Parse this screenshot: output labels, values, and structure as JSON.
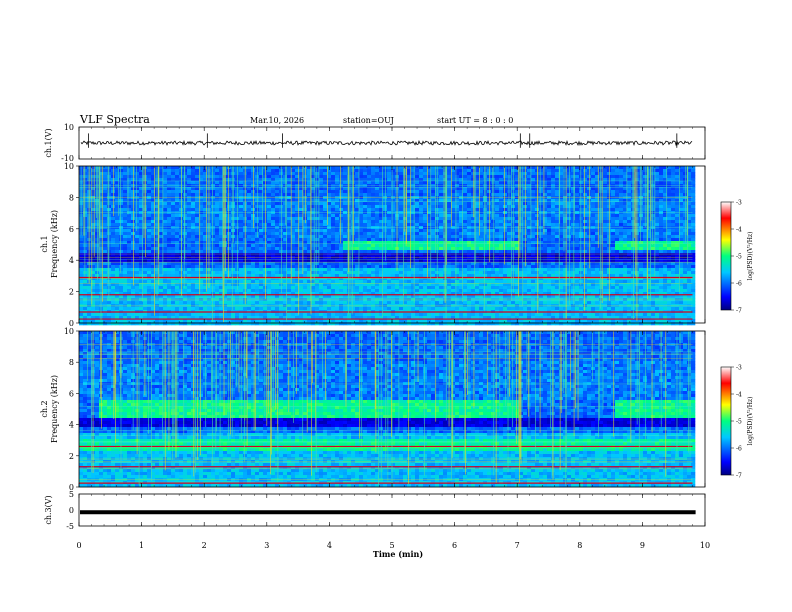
{
  "header": {
    "title": "VLF Spectra",
    "date": "Mar.10, 2026",
    "station": "station=OUJ",
    "start_ut": "start  UT =   8 : 0  : 0"
  },
  "chart_data": [
    {
      "type": "line",
      "id": "ch1_waveform",
      "ylabel": "ch.1(V)",
      "ylim": [
        -10,
        10
      ],
      "ytick_labels": [
        "10",
        "-10"
      ],
      "xlim": [
        0,
        10
      ],
      "mean_value": 0,
      "noise_amplitude": 1.2,
      "spike_times": [
        0.15,
        2.05,
        3.25,
        7.05,
        7.2,
        9.55
      ],
      "color": "#000000"
    },
    {
      "type": "heatmap",
      "id": "ch1_spectrogram",
      "ylabel": "ch.1\nFrequency (kHz)",
      "ylabel_lines": [
        "ch.1",
        "Frequency (kHz)"
      ],
      "ylim": [
        0,
        10
      ],
      "ytick_labels": [
        "0",
        "2",
        "4",
        "6",
        "8",
        "10"
      ],
      "xlim": [
        0,
        9.8
      ],
      "colorbar": {
        "label": "log(PSD)(V²/Hz)",
        "range": [
          -7,
          -3
        ],
        "tick_labels": [
          "-3",
          "-4",
          "-5",
          "-6",
          "-7"
        ]
      },
      "features": {
        "enhanced_band_khz": [
          4.6,
          5.2
        ],
        "enhanced_intervals_min": [
          [
            4.2,
            7.0
          ],
          [
            8.5,
            9.8
          ]
        ],
        "strong_lines_khz": [
          0.25,
          0.7,
          1.8,
          2.9
        ],
        "sferic_density": "high"
      }
    },
    {
      "type": "heatmap",
      "id": "ch2_spectrogram",
      "ylabel": "ch.2\nFrequency (kHz)",
      "ylabel_lines": [
        "ch.2",
        "Frequency (kHz)"
      ],
      "ylim": [
        0,
        10
      ],
      "ytick_labels": [
        "0",
        "2",
        "4",
        "6",
        "8",
        "10"
      ],
      "xlim": [
        0,
        9.8
      ],
      "colorbar": {
        "label": "log(PSD)(V²/Hz)",
        "range": [
          -7,
          -3
        ],
        "tick_labels": [
          "-3",
          "-4",
          "-5",
          "-6",
          "-7"
        ]
      },
      "features": {
        "enhanced_band_khz": [
          4.5,
          5.5
        ],
        "secondary_band_khz": [
          2.3,
          3.0
        ],
        "enhanced_intervals_min": [
          [
            0.3,
            4.2
          ],
          [
            4.2,
            7.0
          ],
          [
            8.5,
            9.8
          ]
        ],
        "strong_lines_khz": [
          0.25,
          1.3,
          2.6
        ],
        "sferic_density": "high"
      }
    },
    {
      "type": "line",
      "id": "ch3_waveform",
      "ylabel": "ch.3(V)",
      "ylim": [
        -5,
        5
      ],
      "ytick_labels": [
        "5",
        "0",
        "-5"
      ],
      "xlim": [
        0,
        10
      ],
      "mean_value": -0.7,
      "noise_amplitude": 0.1,
      "color": "#000000"
    }
  ],
  "x_axis": {
    "label": "Time (min)",
    "tick_labels": [
      "0",
      "1",
      "2",
      "3",
      "4",
      "5",
      "6",
      "7",
      "8",
      "9",
      "10"
    ],
    "range": [
      0,
      10
    ]
  }
}
